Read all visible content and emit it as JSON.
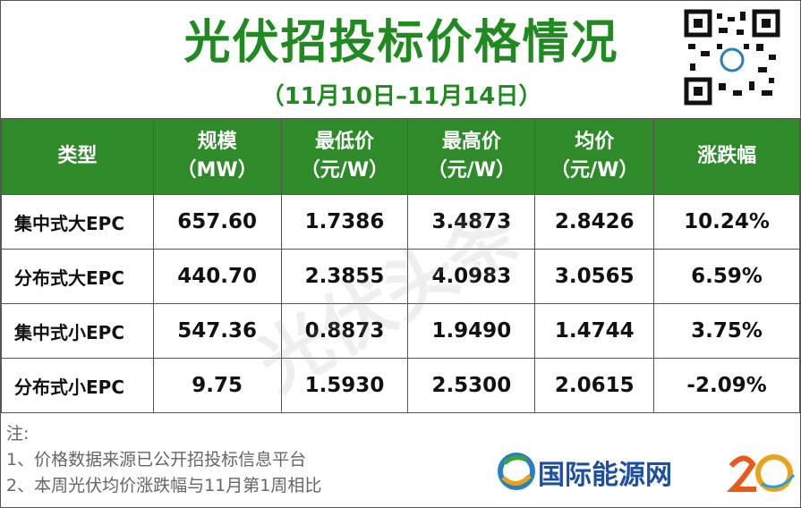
{
  "header": {
    "title": "光伏招投标价格情况",
    "subtitle": "（11月10日–11月14日）"
  },
  "table": {
    "columns": [
      {
        "label": "类型"
      },
      {
        "label": "规模",
        "unit": "（MW）"
      },
      {
        "label": "最低价",
        "unit": "（元/W）"
      },
      {
        "label": "最高价",
        "unit": "（元/W）"
      },
      {
        "label": "均价",
        "unit": "（元/W）"
      },
      {
        "label": "涨跌幅"
      }
    ],
    "rows": [
      [
        "集中式大EPC",
        "657.60",
        "1.7386",
        "3.4873",
        "2.8426",
        "10.24%"
      ],
      [
        "分布式大EPC",
        "440.70",
        "2.3855",
        "4.0983",
        "3.0565",
        "6.59%"
      ],
      [
        "集中式小EPC",
        "547.36",
        "0.8873",
        "1.9490",
        "1.4744",
        "3.75%"
      ],
      [
        "分布式小EPC",
        "9.75",
        "1.5930",
        "2.5300",
        "2.0615",
        "-2.09%"
      ]
    ]
  },
  "notes": {
    "heading": "注:",
    "items": [
      "1、价格数据来源已公开招投标信息平台",
      "2、本周光伏均价涨跌幅与11月第1周相比"
    ]
  },
  "watermark": "光伏头条",
  "logo": "国际能源网"
}
